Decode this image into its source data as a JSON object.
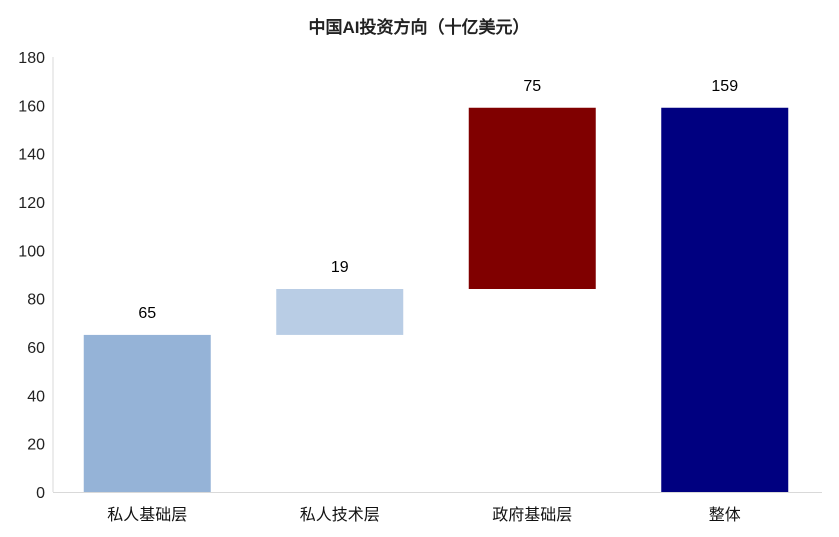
{
  "chart_data": {
    "type": "bar",
    "subtype": "waterfall",
    "title": "中国AI投资方向（十亿美元）",
    "xlabel": "",
    "ylabel": "",
    "categories": [
      "私人基础层",
      "私人技术层",
      "政府基础层",
      "整体"
    ],
    "values": [
      65,
      19,
      75,
      159
    ],
    "bar_bottoms": [
      0,
      65,
      84,
      0
    ],
    "bar_tops": [
      65,
      84,
      159,
      159
    ],
    "data_labels": [
      "65",
      "19",
      "75",
      "159"
    ],
    "colors": [
      "#95B3D7",
      "#B9CDE5",
      "#800000",
      "#000080"
    ],
    "ylim": [
      0,
      180
    ],
    "yticks": [
      0,
      20,
      40,
      60,
      80,
      100,
      120,
      140,
      160,
      180
    ],
    "grid": false,
    "legend": "none"
  }
}
